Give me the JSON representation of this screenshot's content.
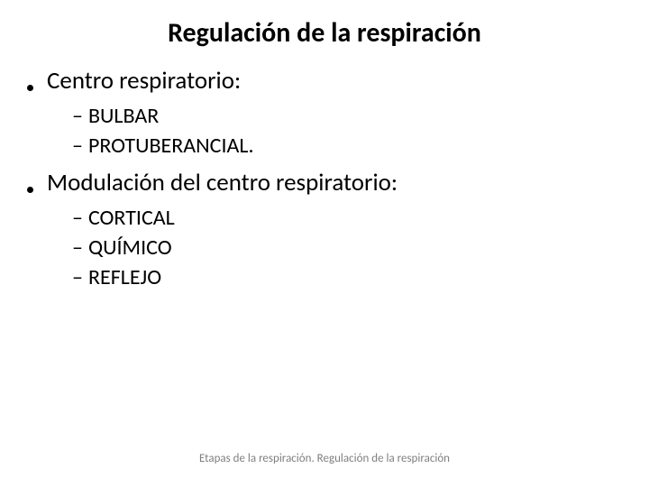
{
  "title": "Regulación de la respiración",
  "sections": [
    {
      "heading": "Centro respiratorio:",
      "items": [
        "BULBAR",
        "PROTUBERANCIAL."
      ]
    },
    {
      "heading": "Modulación del centro respiratorio:",
      "items": [
        "CORTICAL",
        "QUÍMICO",
        "REFLEJO"
      ]
    }
  ],
  "footer": "Etapas de la respiración. Regulación de la respiración",
  "style": {
    "title_fontsize": 30,
    "title_color": "#000000",
    "title_weight": 700,
    "level1_fontsize": 27,
    "level1_color": "#000000",
    "level2_fontsize": 24,
    "level2_color": "#000000",
    "footer_fontsize": 13,
    "footer_color": "#7f7f7f",
    "bullet_dot_size": 7,
    "dash_char": "–",
    "background_color": "#ffffff"
  }
}
